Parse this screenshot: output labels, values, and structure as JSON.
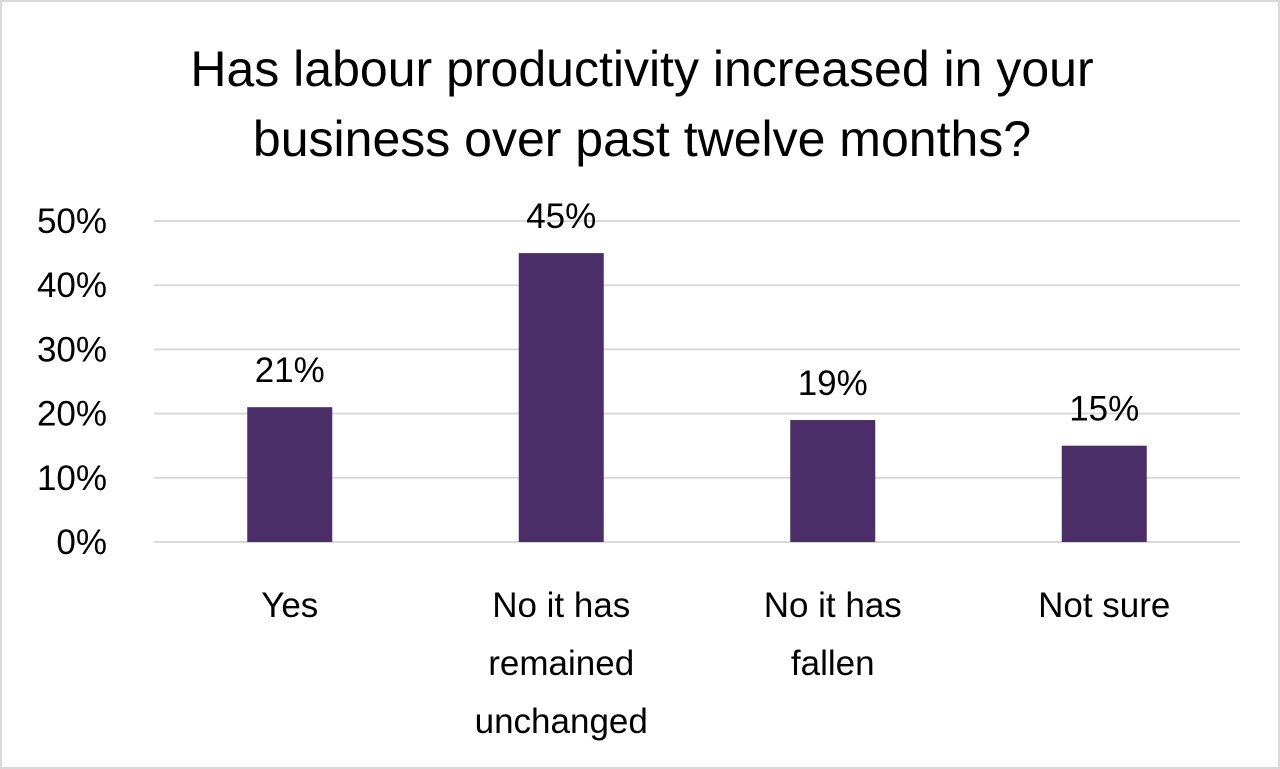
{
  "chart_data": {
    "type": "bar",
    "title": "Has labour productivity increased in your business over past twelve months?",
    "categories": [
      "Yes",
      "No it has remained unchanged",
      "No it has fallen",
      "Not sure"
    ],
    "category_lines": [
      [
        "Yes"
      ],
      [
        "No it has",
        "remained",
        "unchanged"
      ],
      [
        "No it has",
        "fallen"
      ],
      [
        "Not sure"
      ]
    ],
    "values": [
      21,
      45,
      19,
      15
    ],
    "data_labels": [
      "21%",
      "45%",
      "19%",
      "15%"
    ],
    "xlabel": "",
    "ylabel": "",
    "ylim": [
      0,
      50
    ],
    "yticks": [
      0,
      10,
      20,
      30,
      40,
      50
    ],
    "ytick_labels": [
      "0%",
      "10%",
      "20%",
      "30%",
      "40%",
      "50%"
    ],
    "grid": true,
    "legend": false,
    "bar_color": "#4b2e67",
    "grid_color": "#d9d9d9"
  }
}
